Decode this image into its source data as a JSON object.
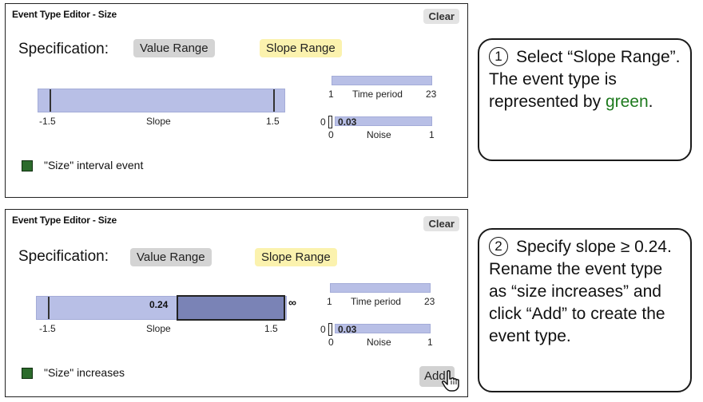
{
  "editor_title": "Event Type Editor - Size",
  "clear_label": "Clear",
  "spec_label": "Specification:",
  "value_range_label": "Value Range",
  "slope_range_label": "Slope Range",
  "slope": {
    "min": "-1.5",
    "label": "Slope",
    "max": "1.5"
  },
  "time_period": {
    "min": "1",
    "label": "Time period",
    "max": "23"
  },
  "noise": {
    "min": "0",
    "label": "Noise",
    "max": "1",
    "value_prefix": "0",
    "value": "0.03"
  },
  "panel1": {
    "event_name": "\"Size\" interval event"
  },
  "panel2": {
    "event_name": "\"Size\" increases",
    "selected_min": "0.24",
    "selected_max": "∞",
    "add_label": "Add"
  },
  "colors": {
    "event_color": "#2c6b2c",
    "selected_button": "#fbf2ae",
    "track": "#b8bfe6"
  },
  "callout1": {
    "number": "1",
    "text_a": "Select “Slope Range”. The event type is represented by ",
    "green_word": "green",
    "text_b": "."
  },
  "callout2": {
    "number": "2",
    "text": "Specify slope ≥ 0.24. Rename the event type as “size increases” and click “Add” to create the event type."
  }
}
